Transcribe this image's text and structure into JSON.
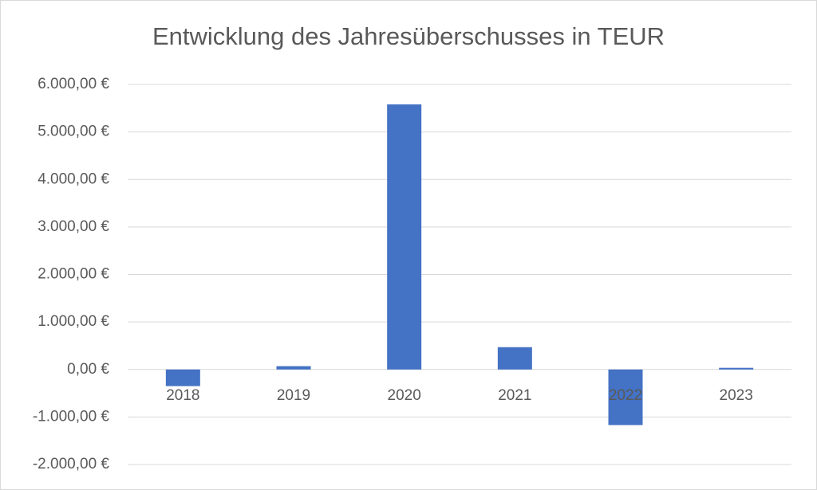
{
  "chart_data": {
    "type": "bar",
    "title": "Entwicklung des Jahresüberschusses in TEUR",
    "categories": [
      "2018",
      "2019",
      "2020",
      "2021",
      "2022",
      "2023"
    ],
    "values": [
      -350,
      70,
      5580,
      470,
      -1170,
      35
    ],
    "color": "#4472c4",
    "ylim": [
      -2000,
      6000
    ],
    "yticks": [
      {
        "value": -2000,
        "label": "-2.000,00 €"
      },
      {
        "value": -1000,
        "label": "-1.000,00 €"
      },
      {
        "value": 0,
        "label": "0,00 €"
      },
      {
        "value": 1000,
        "label": "1.000,00 €"
      },
      {
        "value": 2000,
        "label": "2.000,00 €"
      },
      {
        "value": 3000,
        "label": "3.000,00 €"
      },
      {
        "value": 4000,
        "label": "4.000,00 €"
      },
      {
        "value": 5000,
        "label": "5.000,00 €"
      },
      {
        "value": 6000,
        "label": "6.000,00 €"
      }
    ],
    "grid": true
  }
}
